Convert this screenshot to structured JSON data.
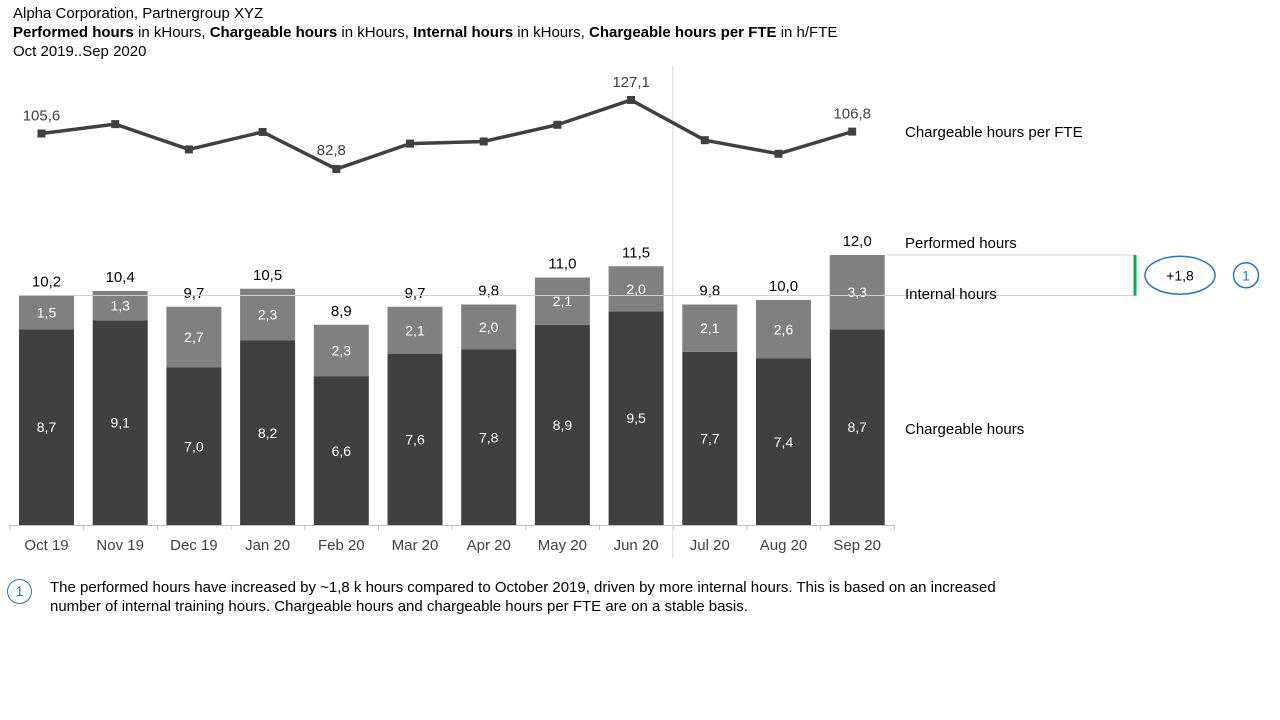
{
  "header": {
    "company": "Alpha Corporation, Partnergroup XYZ",
    "measures": [
      {
        "name": "Performed hours",
        "unit": " in kHours, "
      },
      {
        "name": "Chargeable hours",
        "unit": " in kHours, "
      },
      {
        "name": "Internal hours",
        "unit": " in kHours, "
      },
      {
        "name": "Chargeable hours per FTE",
        "unit": " in h/FTE"
      }
    ],
    "period": "Oct 2019..Sep 2020"
  },
  "chart_data": {
    "type": "bar",
    "stacked": true,
    "categories": [
      "Oct 19",
      "Nov 19",
      "Dec 19",
      "Jan 20",
      "Feb 20",
      "Mar 20",
      "Apr 20",
      "May 20",
      "Jun 20",
      "Jul 20",
      "Aug 20",
      "Sep 20"
    ],
    "series": [
      {
        "name": "Chargeable hours",
        "values": [
          8.7,
          9.1,
          7.0,
          8.2,
          6.6,
          7.6,
          7.8,
          8.9,
          9.5,
          7.7,
          7.4,
          8.7
        ],
        "labels": [
          "8,7",
          "9,1",
          "7,0",
          "8,2",
          "6,6",
          "7,6",
          "7,8",
          "8,9",
          "9,5",
          "7,7",
          "7,4",
          "8,7"
        ],
        "color": "#404040"
      },
      {
        "name": "Internal hours",
        "values": [
          1.5,
          1.3,
          2.7,
          2.3,
          2.3,
          2.1,
          2.0,
          2.1,
          2.0,
          2.1,
          2.6,
          3.3
        ],
        "labels": [
          "1,5",
          "1,3",
          "2,7",
          "2,3",
          "2,3",
          "2,1",
          "2,0",
          "2,1",
          "2,0",
          "2,1",
          "2,6",
          "3,3"
        ],
        "color": "#808080"
      }
    ],
    "totals": {
      "name": "Performed hours",
      "values": [
        10.2,
        10.4,
        9.7,
        10.5,
        8.9,
        9.7,
        9.8,
        11.0,
        11.5,
        9.8,
        10.0,
        12.0
      ],
      "labels": [
        "10,2",
        "10,4",
        "9,7",
        "10,5",
        "8,9",
        "9,7",
        "9,8",
        "11,0",
        "11,5",
        "9,8",
        "10,0",
        "12,0"
      ]
    },
    "line": {
      "name": "Chargeable hours per FTE",
      "values": [
        105.6,
        111.6,
        95.4,
        106.6,
        82.8,
        99.1,
        100.5,
        111.2,
        127.1,
        101.3,
        92.6,
        106.8
      ],
      "labels": [
        "105,6",
        "",
        "",
        "",
        "82,8",
        "",
        "",
        "",
        "127,1",
        "",
        "",
        "106,8"
      ],
      "color": "#404040"
    },
    "difference": {
      "label": "+1,8",
      "color": "#00b050",
      "ellipse_color": "#1f77c8"
    },
    "footnote_marker": "1"
  },
  "footnote": {
    "marker": "1",
    "text": "The performed hours have increased by ~1,8 k hours compared to October 2019, driven by more internal hours. This is based on an increased number of internal training hours. Chargeable hours and chargeable hours per FTE are on a stable basis."
  }
}
